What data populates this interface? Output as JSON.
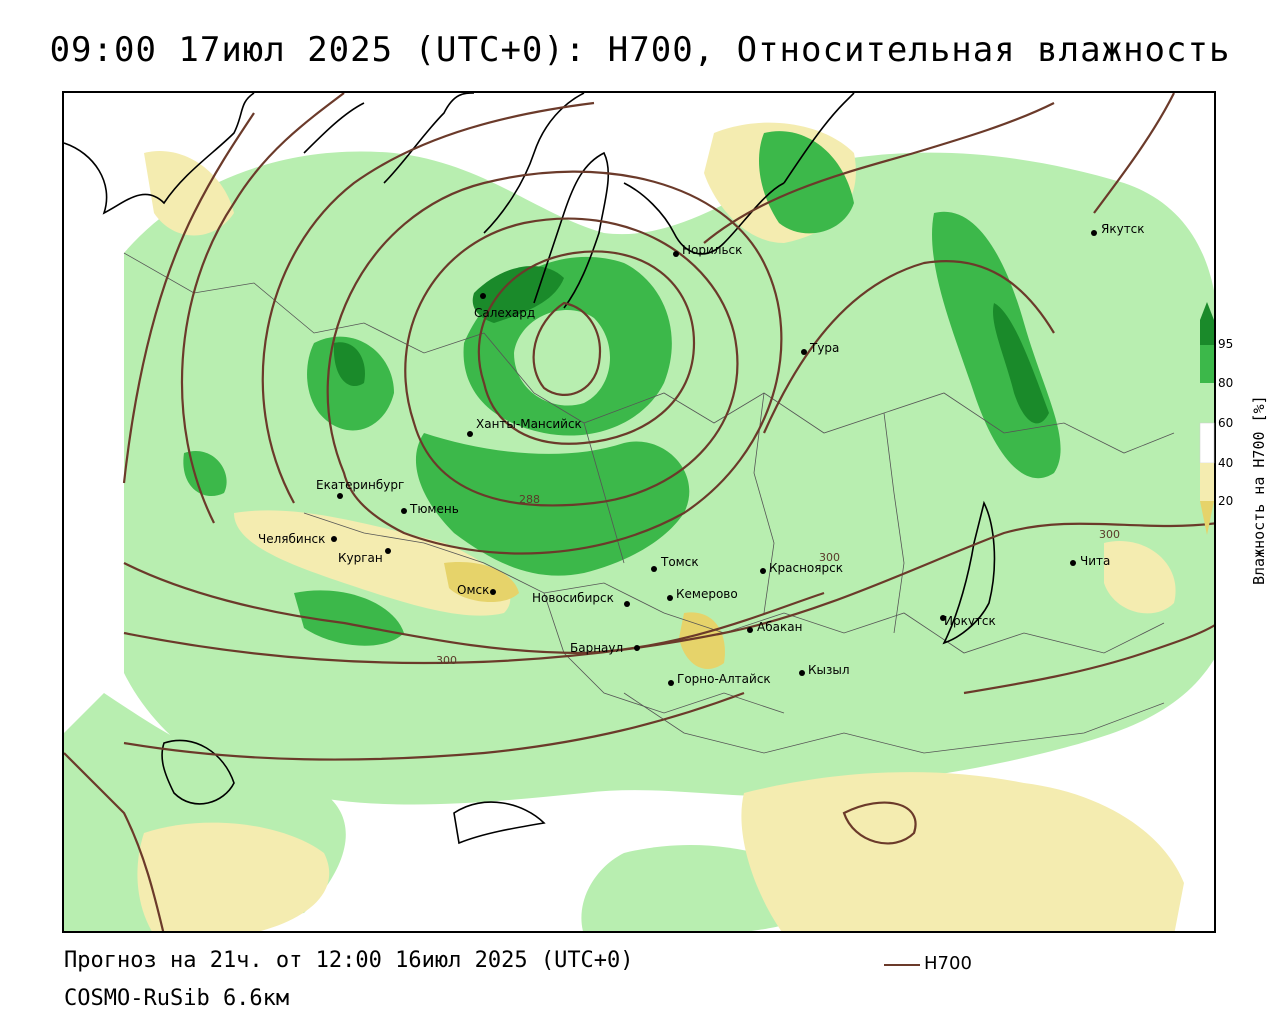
{
  "title": "09:00 17июл 2025 (UTC+0): H700, Относительная влажность",
  "footer": {
    "forecast": "Прогноз на 21ч. от 12:00 16июл 2025 (UTC+0)",
    "model": "COSMO-RuSib 6.6км",
    "contour_key": "H700"
  },
  "legend": {
    "title": "Влажность на H700 [%]",
    "ticks": [
      "95",
      "80",
      "60",
      "40",
      "20"
    ],
    "colors": {
      "very_high": "#1a8a2a",
      "high": "#3cb84a",
      "mid": "#b8eeb0",
      "low": "#ffffff",
      "dry": "#f4ecb0",
      "very_dry": "#e6d36a"
    }
  },
  "contour_color": "#6b3a2a",
  "contour_labels": [
    "288",
    "300",
    "300",
    "300"
  ],
  "cities": [
    "Якутск",
    "Норильск",
    "Салехард",
    "Тура",
    "Ханты-Мансийск",
    "Екатеринбург",
    "Тюмень",
    "Челябинск",
    "Курган",
    "Омск",
    "Томск",
    "Красноярск",
    "Новосибирск",
    "Кемерово",
    "Чита",
    "Иркутск",
    "Абакан",
    "Барнаул",
    "Кызыл",
    "Горно-Алтайск"
  ]
}
